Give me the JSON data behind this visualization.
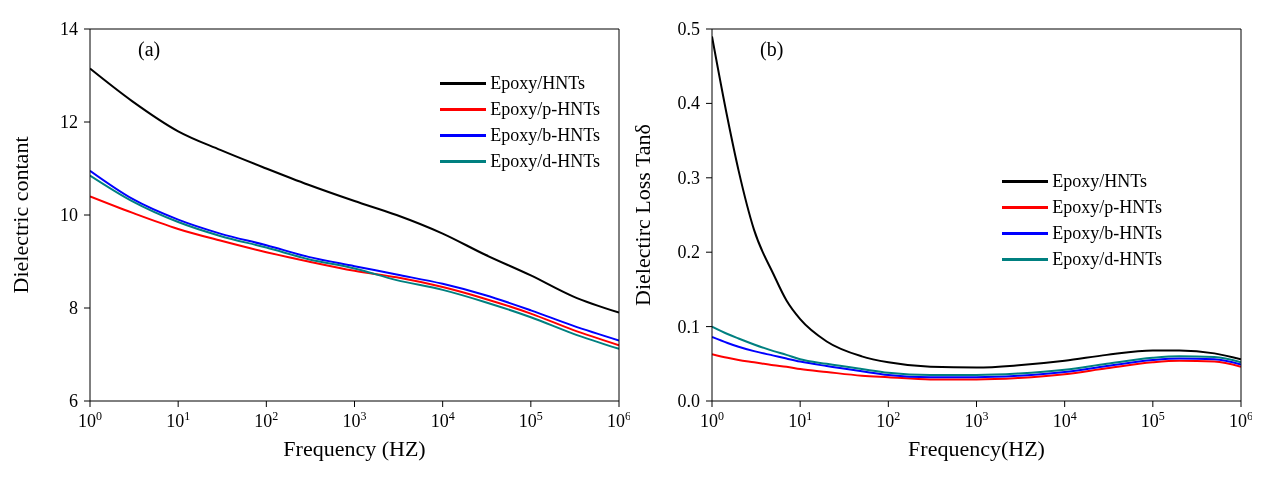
{
  "chart_data": [
    {
      "type": "line",
      "annotations": [
        "(a)"
      ],
      "xlabel": "Frequency (HZ)",
      "ylabel": "Dielectric contant",
      "log": "x",
      "legend": "top right",
      "line_style": "solid",
      "grid": false,
      "x": [
        1,
        3,
        10,
        30,
        100,
        300,
        1000,
        3000,
        10000,
        30000,
        100000,
        300000,
        1000000
      ],
      "xlim": [
        1,
        1000000
      ],
      "xticks": [
        {
          "value": 1,
          "label": "10$^{0}$"
        },
        {
          "value": 10,
          "label": "10$^{1}$"
        },
        {
          "value": 100,
          "label": "10$^{2}$"
        },
        {
          "value": 1000,
          "label": "10$^{3}$"
        },
        {
          "value": 10000,
          "label": "10$^{4}$"
        },
        {
          "value": 100000,
          "label": "10$^{5}$"
        },
        {
          "value": 1000000,
          "label": "10$^{6}$"
        }
      ],
      "ylim": [
        6,
        14
      ],
      "yticks": [
        6,
        8,
        10,
        12,
        14
      ],
      "series": [
        {
          "name": "Epoxy/HNTs",
          "color": "#000000",
          "values": [
            13.15,
            12.45,
            11.8,
            11.4,
            11.0,
            10.65,
            10.3,
            10.0,
            9.6,
            9.15,
            8.7,
            8.25,
            7.9
          ]
        },
        {
          "name": "Epoxy/p-HNTs",
          "color": "#ff0000",
          "values": [
            10.4,
            10.05,
            9.7,
            9.45,
            9.2,
            9.0,
            8.8,
            8.66,
            8.45,
            8.2,
            7.88,
            7.53,
            7.2
          ]
        },
        {
          "name": "Epoxy/b-HNTs",
          "color": "#0000ff",
          "values": [
            10.95,
            10.35,
            9.9,
            9.6,
            9.35,
            9.1,
            8.9,
            8.72,
            8.52,
            8.28,
            7.95,
            7.62,
            7.3
          ]
        },
        {
          "name": "Epoxy/d-HNTs",
          "color": "#008080",
          "values": [
            10.85,
            10.3,
            9.85,
            9.55,
            9.3,
            9.05,
            8.85,
            8.6,
            8.39,
            8.13,
            7.8,
            7.45,
            7.12
          ]
        }
      ]
    },
    {
      "type": "line",
      "annotations": [
        "(b)"
      ],
      "xlabel": "Frequency(HZ)",
      "ylabel": "Dielectirc Loss Tanδ",
      "log": "x",
      "legend": "right",
      "line_style": "solid",
      "grid": false,
      "x": [
        1,
        1.5,
        2,
        3,
        5,
        7,
        10,
        20,
        50,
        100,
        300,
        1000,
        3000,
        10000,
        30000,
        100000,
        200000,
        500000,
        1000000
      ],
      "xlim": [
        1,
        1000000
      ],
      "xticks": [
        {
          "value": 1,
          "label": "10$^{0}$"
        },
        {
          "value": 10,
          "label": "10$^{1}$"
        },
        {
          "value": 100,
          "label": "10$^{2}$"
        },
        {
          "value": 1000,
          "label": "10$^{3}$"
        },
        {
          "value": 10000,
          "label": "10$^{4}$"
        },
        {
          "value": 100000,
          "label": "10$^{5}$"
        },
        {
          "value": 1000000,
          "label": "10$^{6}$"
        }
      ],
      "ylim": [
        0,
        0.5
      ],
      "yticks": [
        {
          "value": 0,
          "label": "0.0"
        },
        0.1,
        0.2,
        0.3,
        0.4,
        0.5
      ],
      "series": [
        {
          "name": "Epoxy/HNTs",
          "color": "#000000",
          "values": [
            0.49,
            0.38,
            0.31,
            0.23,
            0.17,
            0.135,
            0.11,
            0.08,
            0.06,
            0.052,
            0.046,
            0.045,
            0.048,
            0.054,
            0.062,
            0.068,
            0.068,
            0.064,
            0.056
          ]
        },
        {
          "name": "Epoxy/p-HNTs",
          "color": "#ff0000",
          "values": [
            0.063,
            0.058,
            0.055,
            0.052,
            0.048,
            0.046,
            0.043,
            0.039,
            0.034,
            0.032,
            0.029,
            0.029,
            0.031,
            0.036,
            0.044,
            0.052,
            0.054,
            0.053,
            0.046
          ]
        },
        {
          "name": "Epoxy/b-HNTs",
          "color": "#0000ff",
          "values": [
            0.086,
            0.078,
            0.073,
            0.067,
            0.061,
            0.057,
            0.053,
            0.047,
            0.04,
            0.035,
            0.032,
            0.032,
            0.034,
            0.039,
            0.047,
            0.055,
            0.057,
            0.056,
            0.049
          ]
        },
        {
          "name": "Epoxy/d-HNTs",
          "color": "#008080",
          "values": [
            0.1,
            0.09,
            0.084,
            0.076,
            0.067,
            0.062,
            0.056,
            0.05,
            0.043,
            0.038,
            0.035,
            0.035,
            0.037,
            0.042,
            0.05,
            0.058,
            0.06,
            0.059,
            0.052
          ]
        }
      ]
    }
  ]
}
